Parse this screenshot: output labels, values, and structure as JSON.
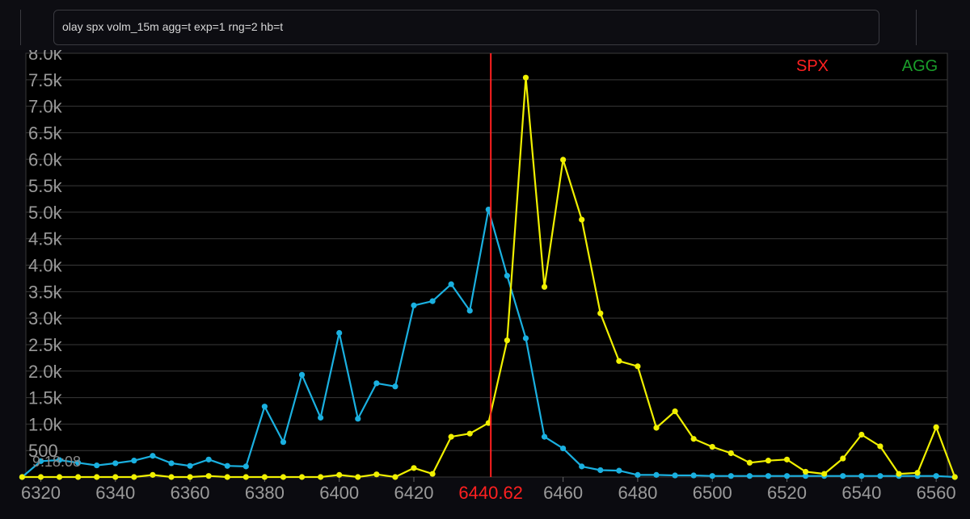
{
  "command": {
    "text": "olay spx volm_15m agg=t exp=1 rng=2 hb=t"
  },
  "chart_data": {
    "type": "line",
    "xlim": [
      6316,
      6563
    ],
    "ylim": [
      0,
      8000
    ],
    "y_ticks": [
      500,
      1000,
      1500,
      2000,
      2500,
      3000,
      3500,
      4000,
      4500,
      5000,
      5500,
      6000,
      6500,
      7000,
      7500,
      8000
    ],
    "y_tick_labels": [
      "500",
      "1.0k",
      "1.5k",
      "2.0k",
      "2.5k",
      "3.0k",
      "3.5k",
      "4.0k",
      "4.5k",
      "5.0k",
      "5.5k",
      "6.0k",
      "6.5k",
      "7.0k",
      "7.5k",
      "8.0k"
    ],
    "x_ticks": [
      6320,
      6340,
      6360,
      6380,
      6400,
      6420,
      6460,
      6480,
      6500,
      6520,
      6540,
      6560
    ],
    "x_tick_labels": [
      "6320",
      "6340",
      "6360",
      "6380",
      "6400",
      "6420",
      "6460",
      "6480",
      "6500",
      "6520",
      "6540",
      "6560"
    ],
    "time_label": "9:18:08",
    "spot": {
      "value": 6440.62,
      "label": "6440.62",
      "color": "#ff2020"
    },
    "legend": [
      {
        "name": "SPX",
        "color": "#ff2020"
      },
      {
        "name": "AGG",
        "color": "#1a9e2a"
      }
    ],
    "legend_position": "top-right",
    "grid": true,
    "x": [
      6315,
      6320,
      6325,
      6330,
      6335,
      6340,
      6345,
      6350,
      6355,
      6360,
      6365,
      6370,
      6375,
      6380,
      6385,
      6390,
      6395,
      6400,
      6405,
      6410,
      6415,
      6420,
      6425,
      6430,
      6435,
      6440,
      6445,
      6450,
      6455,
      6460,
      6465,
      6470,
      6475,
      6480,
      6485,
      6490,
      6495,
      6500,
      6505,
      6510,
      6515,
      6520,
      6525,
      6530,
      6535,
      6540,
      6545,
      6550,
      6555,
      6560,
      6565
    ],
    "series": [
      {
        "color": "#1ab0e0",
        "values": [
          0,
          300,
          320,
          270,
          220,
          260,
          310,
          400,
          260,
          210,
          330,
          210,
          200,
          1330,
          660,
          1930,
          1120,
          2720,
          1100,
          1770,
          1710,
          3240,
          3320,
          3640,
          3140,
          5050,
          3800,
          2620,
          760,
          540,
          200,
          130,
          120,
          40,
          40,
          30,
          30,
          20,
          20,
          20,
          20,
          20,
          20,
          20,
          20,
          20,
          20,
          20,
          20,
          20,
          0
        ]
      },
      {
        "color": "#f0f000",
        "values": [
          0,
          0,
          0,
          0,
          0,
          0,
          0,
          40,
          0,
          0,
          20,
          0,
          0,
          0,
          0,
          0,
          0,
          40,
          0,
          50,
          0,
          170,
          60,
          760,
          820,
          1020,
          2580,
          7540,
          3590,
          5990,
          4860,
          3090,
          2190,
          2090,
          930,
          1240,
          720,
          570,
          450,
          270,
          310,
          330,
          100,
          60,
          350,
          800,
          580,
          60,
          80,
          940,
          0
        ]
      }
    ]
  }
}
